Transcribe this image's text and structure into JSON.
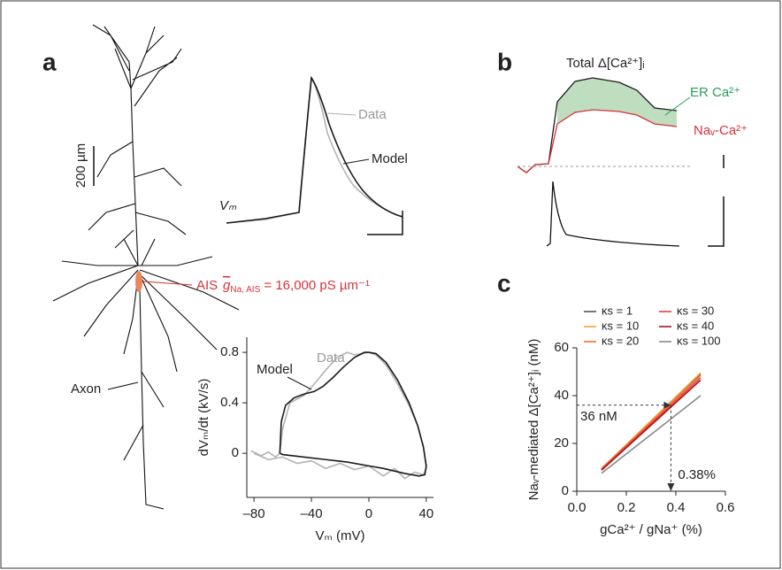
{
  "panel_labels": [
    "a",
    "b",
    "c"
  ],
  "panel_a": {
    "scale_bar": "200 µm",
    "ais": "AIS",
    "gna": [
      "g",
      "Na, AIS",
      " = 16,000 pS µm⁻¹"
    ],
    "axon": "Axon",
    "trace_label": "Vₘ",
    "data": "Data",
    "model": "Model"
  },
  "panel_b": {
    "total": "Total Δ[Ca²⁺]ᵢ",
    "er": "ER Ca²⁺",
    "nav": "Naᵥ-Ca²⁺"
  },
  "chart_data": [
    {
      "type": "line",
      "xlabel": "Vₘ (mV)",
      "ylabel": "dVₘ/dt (kV/s)",
      "xlim": [
        -85,
        45
      ],
      "ylim": [
        -0.35,
        0.92
      ],
      "xticks": [
        {
          "value": -80,
          "label": "–80"
        },
        {
          "value": -40,
          "label": "–40"
        },
        0,
        40
      ],
      "yticks": [
        0,
        0.4,
        0.8
      ],
      "series": [
        {
          "name": "Data",
          "color": "#b3b3b3",
          "x": [
            -82,
            -75,
            -70,
            -65,
            -62,
            -60,
            -55,
            -45,
            -38,
            -30,
            -22,
            -15,
            -10,
            -5,
            0,
            5,
            12,
            20,
            28,
            34,
            38,
            40,
            38,
            32,
            25,
            18,
            10,
            0,
            -10,
            -20,
            -30,
            -40,
            -50,
            -60,
            -70,
            -80
          ],
          "values": [
            0.02,
            -0.02,
            0.01,
            -0.03,
            0,
            0.2,
            0.4,
            0.46,
            0.55,
            0.66,
            0.76,
            0.8,
            0.78,
            0.79,
            0.8,
            0.78,
            0.7,
            0.55,
            0.38,
            0.22,
            0.05,
            -0.12,
            -0.17,
            -0.15,
            -0.2,
            -0.12,
            -0.18,
            -0.1,
            -0.13,
            -0.08,
            -0.12,
            -0.06,
            -0.08,
            -0.03,
            -0.05,
            0
          ]
        },
        {
          "name": "Model",
          "color": "#1a1a1a",
          "x": [
            -62,
            -61,
            -58,
            -52,
            -45,
            -38,
            -32,
            -25,
            -18,
            -10,
            -3,
            0,
            5,
            12,
            20,
            28,
            34,
            38,
            40,
            39,
            35,
            25,
            10,
            0,
            -15,
            -30,
            -45,
            -60,
            -62
          ],
          "values": [
            0,
            0.25,
            0.38,
            0.44,
            0.47,
            0.49,
            0.53,
            0.6,
            0.68,
            0.76,
            0.8,
            0.8,
            0.79,
            0.72,
            0.58,
            0.4,
            0.22,
            0.05,
            -0.1,
            -0.17,
            -0.18,
            -0.16,
            -0.12,
            -0.1,
            -0.07,
            -0.05,
            -0.03,
            -0.01,
            0
          ]
        }
      ]
    },
    {
      "type": "line",
      "xlabel": "gCa²⁺ / gNa⁺ (%)",
      "ylabel": "Naᵥ-mediated Δ[Ca²⁺]ᵢ (nM)",
      "xlim": [
        0,
        0.6
      ],
      "ylim": [
        0,
        60
      ],
      "xticks": [
        {
          "value": 0,
          "label": "0.0"
        },
        0.2,
        0.4,
        0.6
      ],
      "yticks": [
        0,
        20,
        40,
        60
      ],
      "x": [
        0.1,
        0.5
      ],
      "series": [
        {
          "name": "κs = 1",
          "color": "#555555",
          "values": [
            9.5,
            49
          ]
        },
        {
          "name": "κs = 10",
          "color": "#f5a040",
          "values": [
            9.5,
            49.5
          ]
        },
        {
          "name": "κs = 20",
          "color": "#f07030",
          "values": [
            9.3,
            48.5
          ]
        },
        {
          "name": "κs = 30",
          "color": "#e0403a",
          "values": [
            9,
            47.5
          ]
        },
        {
          "name": "κs = 40",
          "color": "#b01020",
          "values": [
            8.8,
            46.5
          ]
        },
        {
          "name": "κs = 100",
          "color": "#888888",
          "values": [
            7.5,
            40
          ]
        }
      ],
      "annotations": [
        {
          "text": "36 nM",
          "y": 36
        },
        {
          "text": "0.38%",
          "x": 0.38
        }
      ]
    }
  ]
}
